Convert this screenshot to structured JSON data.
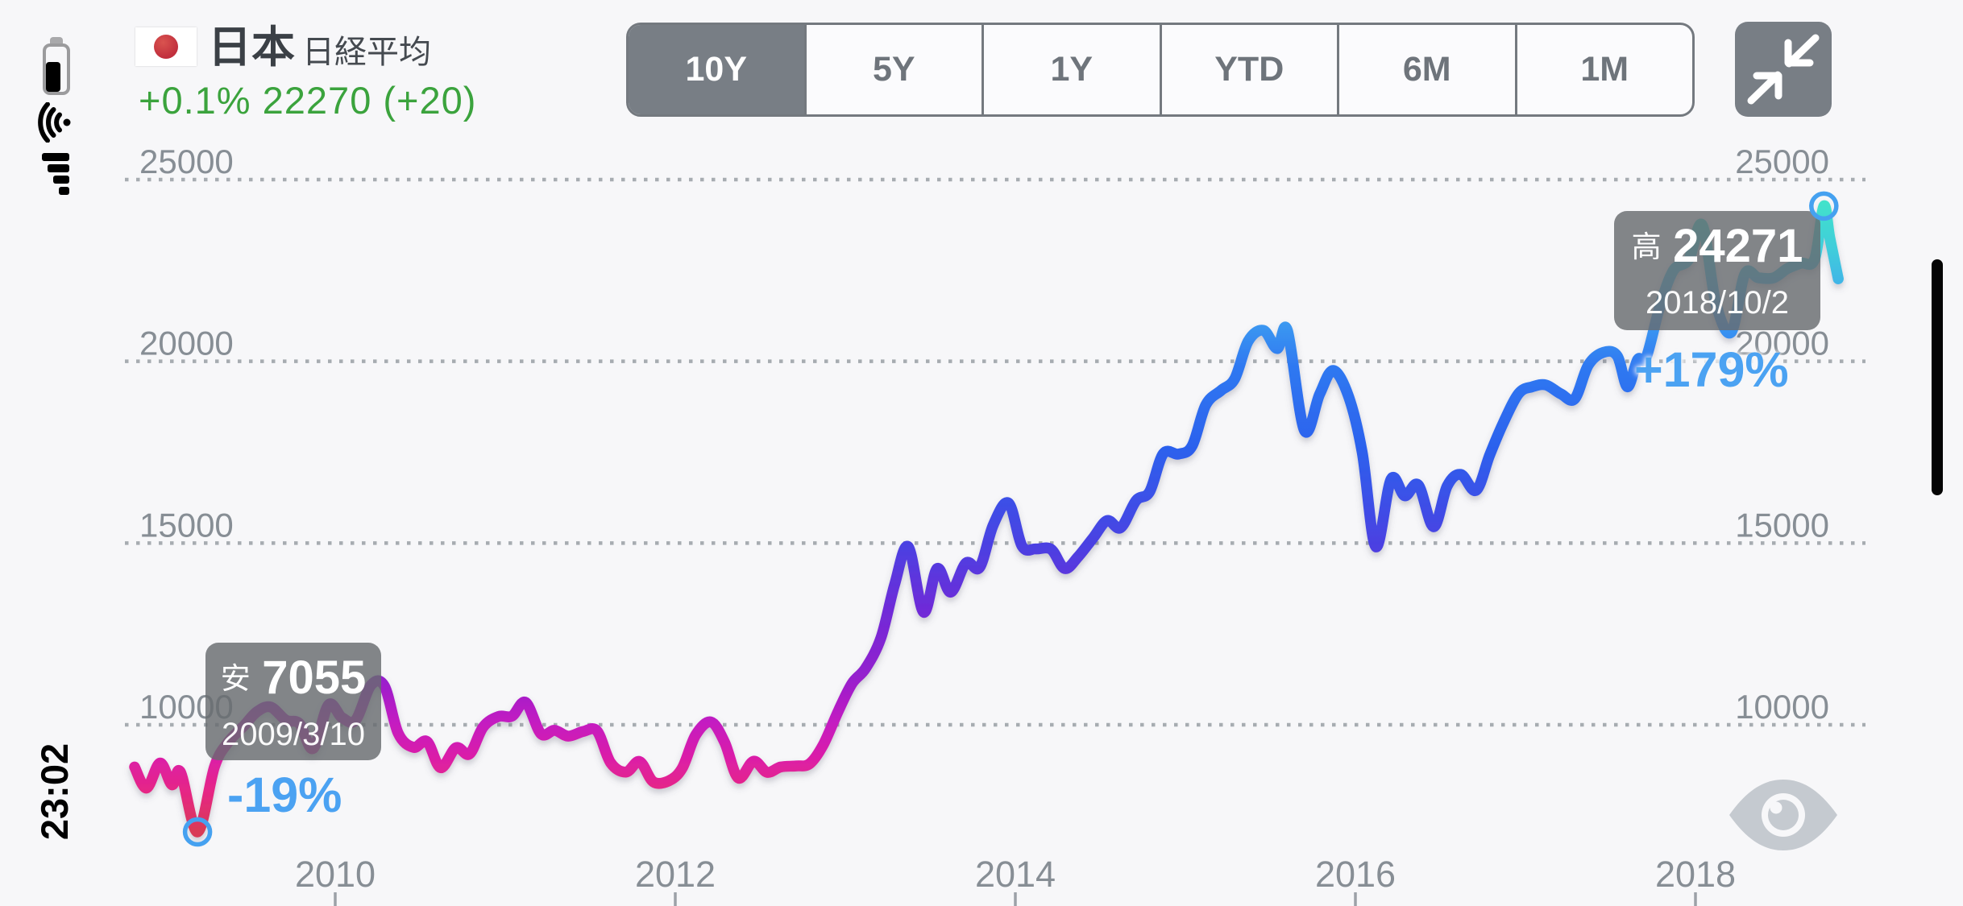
{
  "status_bar": {
    "time": "23:02",
    "battery_icon": "battery-two-thirds",
    "wifi_icon": "wifi",
    "signal_icon": "cellular-signal-bars",
    "home_indicator": "home-indicator"
  },
  "header": {
    "flag_icon": "japan-flag",
    "country": "日本",
    "index_name": "日経平均",
    "quote": "+0.1% 22270 (+20)",
    "quote_color": "#3BA33D"
  },
  "range_selector": {
    "options": [
      "10Y",
      "5Y",
      "1Y",
      "YTD",
      "6M",
      "1M"
    ],
    "selected": "10Y",
    "selected_index": 0
  },
  "collapse_button_icon": "collapse-arrows",
  "eye_icon": "eye",
  "chart_data": {
    "type": "line",
    "title": "日経平均 (Nikkei 225) 10Y",
    "yticks": [
      25000,
      20000,
      15000,
      10000
    ],
    "xticks": [
      2010,
      2012,
      2014,
      2016,
      2018
    ],
    "ylim": [
      6800,
      25600
    ],
    "xlim": [
      2008.8,
      2018.87
    ],
    "grid": "dotted-horizontal",
    "grid_color": "#A7ACB1",
    "axis_label_color": "#878E95",
    "marker_color": "#45A1F0",
    "pct_color": "#4BA2F2",
    "tooltip_bg": "rgba(104,107,111,0.82)",
    "line_gradient_by_value": [
      {
        "value": 24600,
        "color": "#43E6C8"
      },
      {
        "value": 23000,
        "color": "#3FCBDC"
      },
      {
        "value": 21400,
        "color": "#3FA2F1"
      },
      {
        "value": 19900,
        "color": "#2F79F1"
      },
      {
        "value": 17600,
        "color": "#2C61ED"
      },
      {
        "value": 15000,
        "color": "#4A41E2"
      },
      {
        "value": 13200,
        "color": "#6E2BD8"
      },
      {
        "value": 11400,
        "color": "#9320CE"
      },
      {
        "value": 10050,
        "color": "#C41DC1"
      },
      {
        "value": 9050,
        "color": "#DC1FA6"
      },
      {
        "value": 8150,
        "color": "#E62685"
      },
      {
        "value": 7100,
        "color": "#D93A56"
      }
    ],
    "annotations": {
      "high": {
        "tag": "高",
        "value": "24271",
        "date": "2018/10/2",
        "t": 2018.755,
        "v": 24271,
        "pct": "+179%"
      },
      "low": {
        "tag": "安",
        "value": "7055",
        "date": "2009/3/10",
        "t": 2009.19,
        "v": 7055,
        "pct": "-19%"
      }
    },
    "points": [
      [
        2008.82,
        8840
      ],
      [
        2008.89,
        8260
      ],
      [
        2008.97,
        8950
      ],
      [
        2009.04,
        8350
      ],
      [
        2009.09,
        8700
      ],
      [
        2009.19,
        7055
      ],
      [
        2009.29,
        8850
      ],
      [
        2009.37,
        9520
      ],
      [
        2009.46,
        9960
      ],
      [
        2009.54,
        10360
      ],
      [
        2009.62,
        10490
      ],
      [
        2009.71,
        10130
      ],
      [
        2009.79,
        10030
      ],
      [
        2009.87,
        9350
      ],
      [
        2009.96,
        10550
      ],
      [
        2010.04,
        10200
      ],
      [
        2010.12,
        10130
      ],
      [
        2010.21,
        11090
      ],
      [
        2010.29,
        11060
      ],
      [
        2010.37,
        9770
      ],
      [
        2010.46,
        9380
      ],
      [
        2010.54,
        9540
      ],
      [
        2010.62,
        8820
      ],
      [
        2010.71,
        9370
      ],
      [
        2010.79,
        9200
      ],
      [
        2010.87,
        9940
      ],
      [
        2010.96,
        10230
      ],
      [
        2011.04,
        10240
      ],
      [
        2011.12,
        10620
      ],
      [
        2011.21,
        9755
      ],
      [
        2011.29,
        9850
      ],
      [
        2011.37,
        9690
      ],
      [
        2011.46,
        9820
      ],
      [
        2011.54,
        9830
      ],
      [
        2011.62,
        8955
      ],
      [
        2011.71,
        8700
      ],
      [
        2011.79,
        8990
      ],
      [
        2011.87,
        8435
      ],
      [
        2011.96,
        8455
      ],
      [
        2012.04,
        8800
      ],
      [
        2012.12,
        9720
      ],
      [
        2012.21,
        10080
      ],
      [
        2012.29,
        9520
      ],
      [
        2012.37,
        8540
      ],
      [
        2012.46,
        9000
      ],
      [
        2012.54,
        8695
      ],
      [
        2012.62,
        8840
      ],
      [
        2012.71,
        8870
      ],
      [
        2012.79,
        8930
      ],
      [
        2012.87,
        9450
      ],
      [
        2012.96,
        10395
      ],
      [
        2013.04,
        11140
      ],
      [
        2013.12,
        11560
      ],
      [
        2013.21,
        12400
      ],
      [
        2013.29,
        13860
      ],
      [
        2013.37,
        14900
      ],
      [
        2013.46,
        13100
      ],
      [
        2013.54,
        14300
      ],
      [
        2013.62,
        13650
      ],
      [
        2013.71,
        14455
      ],
      [
        2013.79,
        14330
      ],
      [
        2013.87,
        15500
      ],
      [
        2013.96,
        16100
      ],
      [
        2014.04,
        14915
      ],
      [
        2014.12,
        14840
      ],
      [
        2014.21,
        14830
      ],
      [
        2014.29,
        14300
      ],
      [
        2014.37,
        14630
      ],
      [
        2014.46,
        15160
      ],
      [
        2014.54,
        15620
      ],
      [
        2014.62,
        15425
      ],
      [
        2014.71,
        16170
      ],
      [
        2014.79,
        16415
      ],
      [
        2014.87,
        17460
      ],
      [
        2014.96,
        17450
      ],
      [
        2015.04,
        17675
      ],
      [
        2015.12,
        18800
      ],
      [
        2015.21,
        19200
      ],
      [
        2015.29,
        19520
      ],
      [
        2015.37,
        20560
      ],
      [
        2015.46,
        20850
      ],
      [
        2015.54,
        20350
      ],
      [
        2015.6,
        20850
      ],
      [
        2015.7,
        18100
      ],
      [
        2015.79,
        19100
      ],
      [
        2015.87,
        19750
      ],
      [
        2015.96,
        19030
      ],
      [
        2016.04,
        17500
      ],
      [
        2016.12,
        14900
      ],
      [
        2016.21,
        16760
      ],
      [
        2016.29,
        16300
      ],
      [
        2016.37,
        16600
      ],
      [
        2016.46,
        15450
      ],
      [
        2016.54,
        16570
      ],
      [
        2016.62,
        16890
      ],
      [
        2016.71,
        16450
      ],
      [
        2016.79,
        17425
      ],
      [
        2016.87,
        18310
      ],
      [
        2016.96,
        19115
      ],
      [
        2017.04,
        19300
      ],
      [
        2017.12,
        19350
      ],
      [
        2017.21,
        19100
      ],
      [
        2017.29,
        18970
      ],
      [
        2017.37,
        19900
      ],
      [
        2017.46,
        20250
      ],
      [
        2017.54,
        20150
      ],
      [
        2017.6,
        19300
      ],
      [
        2017.66,
        20050
      ],
      [
        2017.71,
        20100
      ],
      [
        2017.79,
        21500
      ],
      [
        2017.87,
        22500
      ],
      [
        2017.96,
        22800
      ],
      [
        2018.04,
        23750
      ],
      [
        2018.12,
        21600
      ],
      [
        2018.21,
        20800
      ],
      [
        2018.29,
        22400
      ],
      [
        2018.37,
        22300
      ],
      [
        2018.46,
        22300
      ],
      [
        2018.54,
        22550
      ],
      [
        2018.62,
        22700
      ],
      [
        2018.7,
        22800
      ],
      [
        2018.755,
        24271
      ],
      [
        2018.79,
        23400
      ],
      [
        2018.84,
        22270
      ]
    ]
  }
}
